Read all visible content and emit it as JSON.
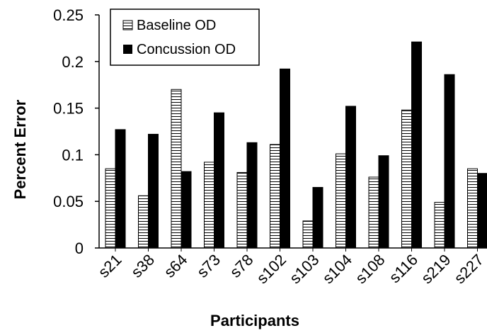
{
  "chart_data": {
    "type": "bar",
    "title": "",
    "xlabel": "Participants",
    "ylabel": "Percent Error",
    "ylim": [
      0,
      0.25
    ],
    "yticks": [
      0,
      0.05,
      0.1,
      0.15,
      0.2,
      0.25
    ],
    "ytick_labels": [
      "0",
      "0.05",
      "0.1",
      "0.15",
      "0.2",
      "0.25"
    ],
    "grid": false,
    "legend_position": "top-left",
    "categories": [
      "s21",
      "s38",
      "s64",
      "s73",
      "s78",
      "s102",
      "s103",
      "s104",
      "s108",
      "s116",
      "s219",
      "s227"
    ],
    "series": [
      {
        "name": "Baseline OD",
        "pattern": "horizontal-stripes",
        "color": "#000000",
        "values": [
          0.085,
          0.056,
          0.17,
          0.092,
          0.081,
          0.111,
          0.029,
          0.101,
          0.076,
          0.148,
          0.049,
          0.085
        ]
      },
      {
        "name": "Concussion OD",
        "pattern": "solid",
        "color": "#000000",
        "values": [
          0.127,
          0.122,
          0.082,
          0.145,
          0.113,
          0.192,
          0.065,
          0.152,
          0.099,
          0.221,
          0.186,
          0.08
        ]
      }
    ]
  }
}
